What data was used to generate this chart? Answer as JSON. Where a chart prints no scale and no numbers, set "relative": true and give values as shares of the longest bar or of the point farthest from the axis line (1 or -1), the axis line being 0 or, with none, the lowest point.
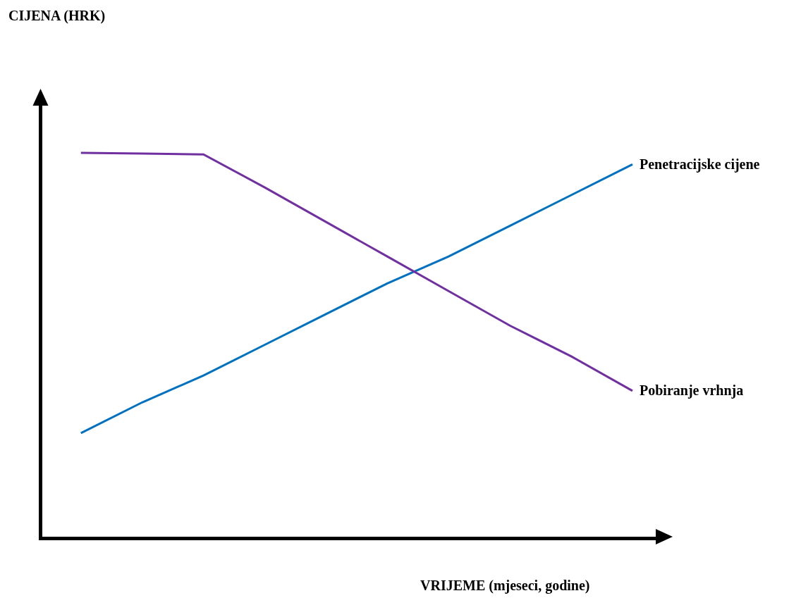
{
  "chart_data": {
    "type": "line",
    "relative": true,
    "xlabel": "VRIJEME (mjeseci, godine)",
    "annotations": [
      "CIJENA (HRK)"
    ],
    "categories": [
      null,
      null,
      null,
      null,
      null,
      null,
      null,
      null,
      null,
      null
    ],
    "series": [
      {
        "name": "Penetracijske cijene",
        "color": "#0070c0",
        "values": [
          0.27,
          0.35,
          0.42,
          0.5,
          0.58,
          0.66,
          0.73,
          0.81,
          0.89,
          0.97
        ]
      },
      {
        "name": "Pobiranje vrhnja",
        "color": "#7030a0",
        "values": [
          1.0,
          0.998,
          0.996,
          0.91,
          0.82,
          0.73,
          0.64,
          0.55,
          0.47,
          0.38
        ]
      }
    ],
    "marker": "none",
    "line_style": "solid",
    "legend": false,
    "grid": false
  }
}
